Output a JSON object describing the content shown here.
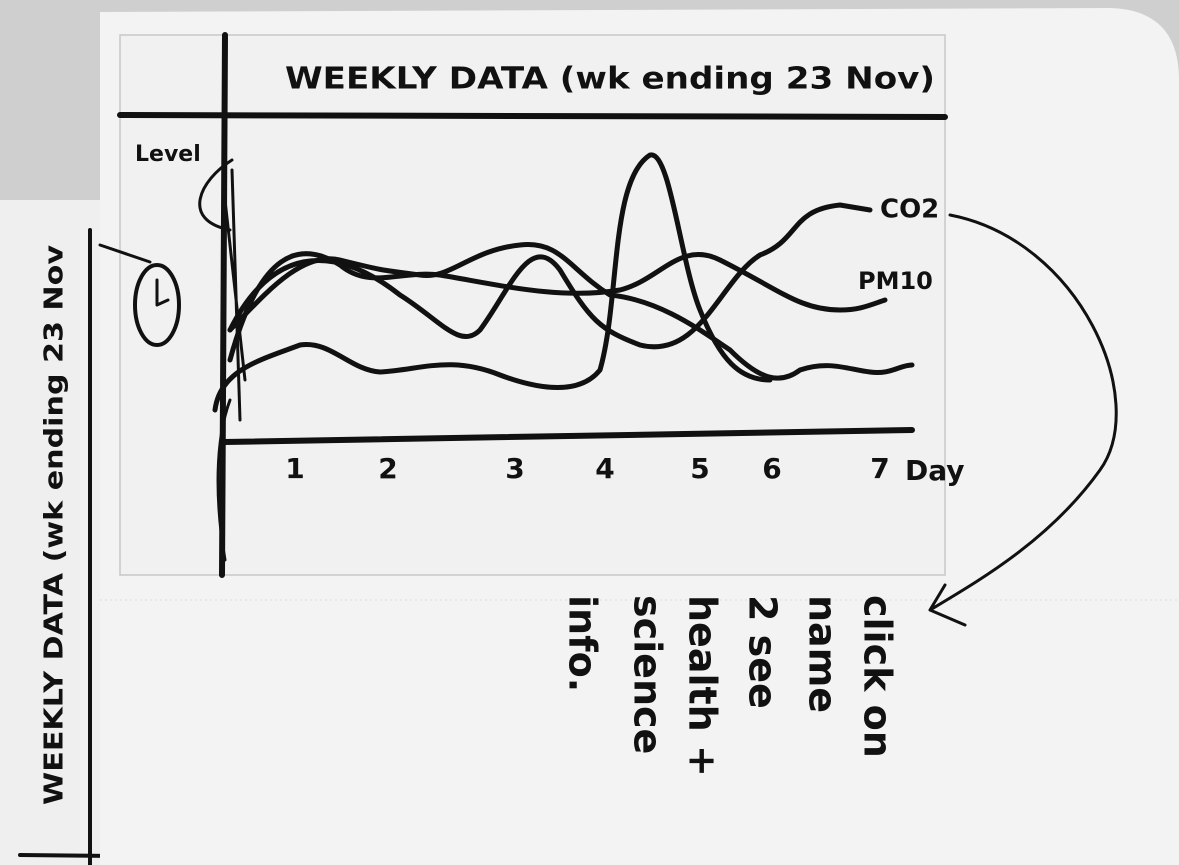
{
  "header": {
    "title": "WEEKLY DATA (wk ending 23 Nov)"
  },
  "chart": {
    "y_label": "Level",
    "x_label": "Day",
    "x_labels": [
      "1",
      "2",
      "3",
      "4",
      "5",
      "6",
      "7"
    ],
    "series_labels": [
      "CO2",
      "PM10"
    ]
  },
  "side_sheet": {
    "title": "WEEKLY DATA (wk ending 23 Nov"
  },
  "annotation": {
    "lines": [
      "click on",
      "name",
      "2 see",
      "health +",
      "science",
      "info."
    ]
  }
}
